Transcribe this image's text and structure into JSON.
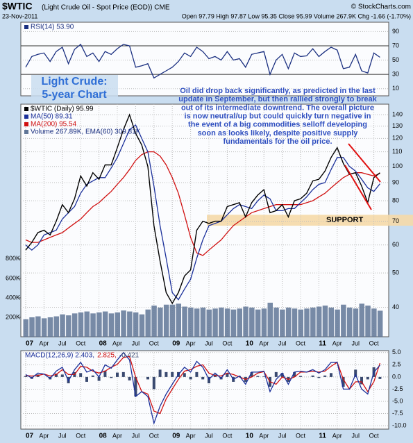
{
  "header": {
    "title": "$WTIC",
    "subtitle": "(Light Crude Oil - Spot Price (EOD)) CME",
    "date": "23-Nov-2011",
    "quote": "Open 97.79 High 97.87 Low 95.35 Close 95.99 Volume 267.9K Chg -1.66 (-1.70%)",
    "source": "© StockCharts.com"
  },
  "annotation": {
    "title_lines": [
      "Light Crude:",
      "5-year Chart"
    ],
    "text_lines": [
      "Oil did drop back significantly, as predicted in the last",
      "update in September, but then rallied strongly to break",
      "out of its intermediate downtrend. The overall picture",
      "is now neutral/up but could quickly turn negative in",
      "the event of a big commodities selloff developing",
      "soon as looks likely, despite positive supply",
      "fundamentals for the oil price."
    ]
  },
  "chart_data": [
    {
      "type": "line",
      "ylim": [
        0,
        103
      ],
      "yticks": [
        10,
        30,
        50,
        70,
        90
      ],
      "grid": true,
      "series": [
        {
          "name": "RSI(14) 53.90",
          "color": "#1a2f80",
          "values": [
            40,
            55,
            58,
            60,
            48,
            62,
            68,
            45,
            65,
            72,
            55,
            60,
            48,
            62,
            58,
            66,
            72,
            70,
            40,
            42,
            45,
            25,
            30,
            35,
            40,
            48,
            60,
            55,
            68,
            62,
            52,
            55,
            50,
            62,
            50,
            52,
            40,
            58,
            60,
            62,
            30,
            50,
            58,
            38,
            60,
            55,
            56,
            66,
            55,
            62,
            68,
            64,
            38,
            40,
            58,
            35,
            32,
            60,
            53.9
          ]
        }
      ]
    },
    {
      "type": "line",
      "log_scale": true,
      "ylim": [
        33,
        150
      ],
      "yticks": [
        40,
        50,
        60,
        70,
        80,
        90,
        100,
        110,
        120,
        130,
        140
      ],
      "grid": true,
      "y2lim": [
        0,
        2390000
      ],
      "y2ticks": [
        {
          "value": 200000,
          "label": "200K"
        },
        {
          "value": 400000,
          "label": "400K"
        },
        {
          "value": 600000,
          "label": "600K"
        },
        {
          "value": 800000,
          "label": "800K"
        }
      ],
      "categories": [
        "07",
        null,
        null,
        "Apr",
        null,
        null,
        "Jul",
        null,
        null,
        "Oct",
        null,
        null,
        "08",
        null,
        null,
        "Apr",
        null,
        null,
        "Jul",
        null,
        null,
        "Oct",
        null,
        null,
        "09",
        null,
        null,
        "Apr",
        null,
        null,
        "Jul",
        null,
        null,
        "Oct",
        null,
        null,
        "10",
        null,
        null,
        "Apr",
        null,
        null,
        "Jul",
        null,
        null,
        "Oct",
        null,
        null,
        "11",
        null,
        null,
        "Apr",
        null,
        null,
        "Jul",
        null,
        null,
        "Oct",
        null
      ],
      "support": {
        "label": "SUPPORT",
        "low": 68,
        "high": 73,
        "color": "#f5d9a8"
      },
      "series": [
        {
          "name": "Volume 267.89K, EMA(60) 309.81K",
          "type": "bar",
          "axis": "y2",
          "color": "#5f7597",
          "values": [
            180000,
            200000,
            210000,
            190000,
            200000,
            210000,
            230000,
            220000,
            240000,
            250000,
            260000,
            240000,
            250000,
            260000,
            240000,
            250000,
            270000,
            260000,
            250000,
            230000,
            280000,
            320000,
            300000,
            330000,
            330000,
            340000,
            310000,
            300000,
            290000,
            300000,
            280000,
            290000,
            300000,
            290000,
            280000,
            290000,
            310000,
            300000,
            280000,
            290000,
            350000,
            300000,
            280000,
            300000,
            290000,
            280000,
            290000,
            300000,
            310000,
            320000,
            300000,
            280000,
            330000,
            300000,
            290000,
            340000,
            320000,
            290000,
            267900
          ]
        },
        {
          "name": "MA(200) 95.54",
          "color": "#d01010",
          "values": [
            62,
            61,
            61,
            62,
            63,
            64,
            65,
            67,
            69,
            71,
            74,
            77,
            79,
            82,
            85,
            89,
            93,
            98,
            104,
            108,
            110,
            110,
            107,
            101,
            93,
            84,
            73,
            63,
            57,
            56,
            58,
            60,
            62,
            65,
            68,
            70,
            72,
            74,
            75,
            76,
            77,
            78,
            78,
            78,
            78,
            78,
            79,
            80,
            82,
            84,
            87,
            90,
            93,
            95,
            96,
            96,
            95,
            94,
            95.54
          ]
        },
        {
          "name": "MA(50) 89.31",
          "color": "#1a2f9a",
          "values": [
            60,
            58,
            60,
            64,
            65,
            66,
            71,
            74,
            77,
            84,
            89,
            91,
            93,
            93,
            99,
            106,
            116,
            127,
            131,
            120,
            110,
            88,
            68,
            55,
            44,
            42,
            45,
            48,
            55,
            62,
            68,
            69,
            70,
            73,
            76,
            78,
            77,
            76,
            80,
            83,
            81,
            75,
            75,
            76,
            76,
            79,
            82,
            86,
            89,
            90,
            98,
            106,
            106,
            100,
            97,
            92,
            87,
            85,
            89.31
          ]
        },
        {
          "name": "$WTIC (Daily) 95.99",
          "color": "#000000",
          "values": [
            58,
            61,
            65,
            66,
            64,
            70,
            78,
            74,
            81,
            94,
            88,
            96,
            92,
            101,
            101,
            113,
            127,
            140,
            124,
            115,
            100,
            68,
            54,
            44,
            41,
            44,
            49,
            51,
            66,
            70,
            69,
            70,
            70,
            77,
            78,
            79,
            72,
            79,
            83,
            86,
            74,
            75,
            78,
            72,
            80,
            81,
            84,
            91,
            92,
            97,
            106,
            113,
            102,
            95,
            96,
            88,
            79,
            93,
            95.99
          ]
        }
      ]
    },
    {
      "type": "line",
      "ylim": [
        -10.7,
        5.4
      ],
      "grid": true,
      "yticks": [
        {
          "value": 5,
          "label": "5.0"
        },
        {
          "value": 2.5,
          "label": "2.5"
        },
        {
          "value": 0,
          "label": "0.0"
        },
        {
          "value": -2.5,
          "label": "-2.5"
        },
        {
          "value": -5,
          "label": "-5.0"
        },
        {
          "value": -7.5,
          "label": "-7.5"
        },
        {
          "value": -10,
          "label": "-10.0"
        }
      ],
      "categories": [
        "07",
        null,
        null,
        "Apr",
        null,
        null,
        "Jul",
        null,
        null,
        "Oct",
        null,
        null,
        "08",
        null,
        null,
        "Apr",
        null,
        null,
        "Jul",
        null,
        null,
        "Oct",
        null,
        null,
        "09",
        null,
        null,
        "Apr",
        null,
        null,
        "Jul",
        null,
        null,
        "Oct",
        null,
        null,
        "10",
        null,
        null,
        "Apr",
        null,
        null,
        "Jul",
        null,
        null,
        "Oct",
        null,
        null,
        "11",
        null,
        null,
        "Apr",
        null,
        null,
        "Jul",
        null,
        null,
        "Oct",
        null
      ],
      "series": [
        {
          "name": "-0.421",
          "type": "histogram",
          "color": "#3a4a70",
          "values": [
            0.2,
            -0.4,
            0.5,
            0,
            -0.5,
            0.7,
            0.5,
            -1.3,
            1,
            0.8,
            -1,
            0.3,
            -0.8,
            1.3,
            -0.2,
            0.9,
            1,
            -0.7,
            -4,
            0,
            -0.5,
            -2.5,
            1.5,
            1,
            1,
            1,
            0.8,
            -0.5,
            1,
            -0.5,
            -1.3,
            0.5,
            -0.5,
            0.7,
            -1,
            0.2,
            -1,
            1,
            0.2,
            0.1,
            -2,
            1,
            0.8,
            -1,
            1,
            0.2,
            0,
            0.3,
            -0.2,
            0.3,
            0.8,
            0,
            -2,
            0,
            1.5,
            -1.5,
            -0.5,
            2,
            -0.421
          ]
        },
        {
          "name": "2.825,",
          "color": "#d01010",
          "values": [
            0.3,
            0.2,
            0.3,
            0.6,
            0.2,
            0.5,
            1.5,
            0.5,
            0.5,
            2.2,
            2,
            1.2,
            0.8,
            1.2,
            2,
            2.6,
            4,
            4.2,
            0,
            -3,
            -3.5,
            -7,
            -7.5,
            -4.5,
            -2.5,
            -0.5,
            1.2,
            1.5,
            2.2,
            2.5,
            0.8,
            0.3,
            0.2,
            0.8,
            0.5,
            0,
            -0.5,
            0,
            0.8,
            1.1,
            -1,
            -1.5,
            0,
            -0.5,
            0,
            1,
            1,
            1.2,
            1,
            1.2,
            2.2,
            3,
            -0.5,
            -2.5,
            -1,
            -1,
            -3,
            -1,
            2.825
          ]
        },
        {
          "name": "MACD(12,26,9) 2.403,",
          "color": "#1a2f9a",
          "values": [
            0.5,
            -0.2,
            0.8,
            0.6,
            -0.3,
            1.2,
            2,
            -0.8,
            1.5,
            3,
            1,
            1.5,
            0,
            2.5,
            1.8,
            3.5,
            5,
            3.5,
            -4,
            -3,
            -4,
            -9.5,
            -6,
            -3.5,
            -1.5,
            0.5,
            2,
            1,
            3.2,
            2,
            -0.5,
            0.8,
            -0.3,
            1.5,
            -0.5,
            0.2,
            -1.5,
            1,
            1,
            1.2,
            -3,
            -0.5,
            0.8,
            -1.5,
            1,
            1.2,
            1,
            1.5,
            0.8,
            1.5,
            3,
            3,
            -2.5,
            -2.5,
            0.5,
            -2.5,
            -3.5,
            1,
            2.403
          ]
        }
      ]
    }
  ]
}
